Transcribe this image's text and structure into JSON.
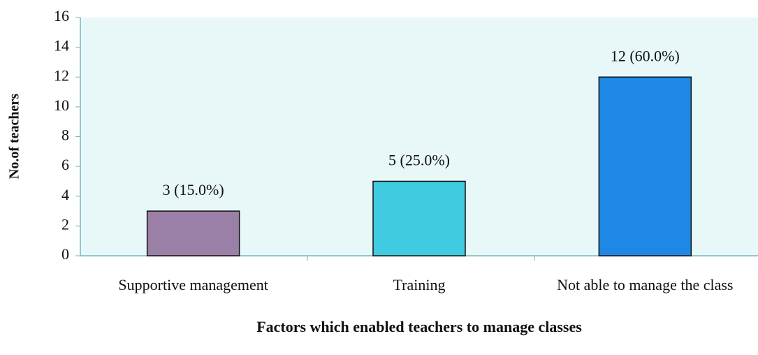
{
  "chart_data": {
    "type": "bar",
    "x_label": "Factors which enabled teachers to manage classes",
    "y_label": "No.of teachers",
    "categories": [
      "Supportive management",
      "Training",
      "Not able to manage the class"
    ],
    "values": [
      3,
      5,
      12
    ],
    "value_labels": [
      "3 (15.0%)",
      "5 (25.0%)",
      "12 (60.0%)"
    ],
    "colors": [
      "#9a80a6",
      "#3fcbe0",
      "#1e88e6"
    ],
    "ylim": [
      0,
      16
    ],
    "yticks": [
      0,
      2,
      4,
      6,
      8,
      10,
      12,
      14,
      16
    ],
    "grid": false
  }
}
